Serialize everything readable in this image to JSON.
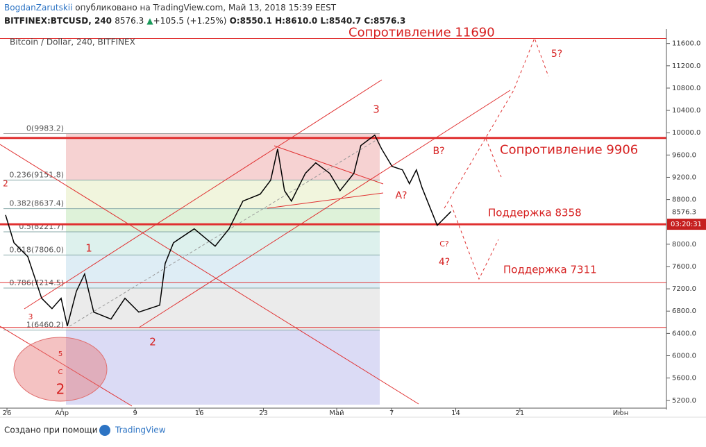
{
  "chart_data": {
    "type": "line",
    "header": {
      "author": "BogdanZarutskii",
      "published": "опубликовано на TradingView.com, Май 13, 2018 15:39 EEST"
    },
    "quote": {
      "symbol": "BITFINEX:BTCUSD, 240",
      "last": "8576.3",
      "change": "+105.5 (+1.25%)",
      "open": "O:8550.1",
      "high": "H:8610.0",
      "low": "L:8540.7",
      "close": "C:8576.3"
    },
    "title": "Bitcoin / Dollar, 240, BITFINEX",
    "footer": {
      "made_with": "Создано при помощи",
      "brand": "TradingView"
    },
    "xlim": [
      -0.76,
      72
    ],
    "ylim": [
      5060,
      11820
    ],
    "xticks": [
      {
        "value": 0,
        "label": "26"
      },
      {
        "value": 6,
        "label": "Апр"
      },
      {
        "value": 14,
        "label": "9"
      },
      {
        "value": 21,
        "label": "16"
      },
      {
        "value": 28,
        "label": "23"
      },
      {
        "value": 36,
        "label": "Май"
      },
      {
        "value": 42,
        "label": "7"
      },
      {
        "value": 49,
        "label": "14"
      },
      {
        "value": 56,
        "label": "21"
      },
      {
        "value": 67,
        "label": "Июн"
      }
    ],
    "yticks": [
      {
        "value": 11600,
        "label": "11600.0"
      },
      {
        "value": 11200,
        "label": "11200.0"
      },
      {
        "value": 10800,
        "label": "10800.0"
      },
      {
        "value": 10400,
        "label": "10400.0"
      },
      {
        "value": 10000,
        "label": "10000.0"
      },
      {
        "value": 9600,
        "label": "9600.0"
      },
      {
        "value": 9200,
        "label": "9200.0"
      },
      {
        "value": 8800,
        "label": "8800.0"
      },
      {
        "value": 8000,
        "label": "8000.0"
      },
      {
        "value": 7600,
        "label": "7600.0"
      },
      {
        "value": 7200,
        "label": "7200.0"
      },
      {
        "value": 6800,
        "label": "6800.0"
      },
      {
        "value": 6400,
        "label": "6400.0"
      },
      {
        "value": 6000,
        "label": "6000.0"
      },
      {
        "value": 5600,
        "label": "5600.0"
      },
      {
        "value": 5200,
        "label": "5200.0"
      }
    ],
    "price_marker": {
      "value": 8576.3,
      "label": "8576.3"
    },
    "countdown": {
      "value": 8358,
      "label": "03:20:31"
    },
    "series": [
      {
        "name": "BTCUSD",
        "color": "#000000",
        "x": [
          -0.15,
          0.76,
          2.27,
          3.79,
          4.92,
          5.91,
          6.59,
          7.58,
          8.48,
          9.47,
          11.36,
          12.88,
          14.39,
          16.67,
          17.27,
          18.18,
          20.45,
          22.73,
          24.24,
          25.76,
          27.65,
          28.79,
          29.55,
          30.3,
          31.06,
          32.58,
          33.71,
          35.23,
          36.36,
          37.88,
          38.64,
          40.15,
          40.91,
          42.05,
          43.18,
          43.94,
          44.7,
          45.3,
          46.21,
          46.97,
          47.73,
          48.48
        ],
        "values": [
          8525,
          8027,
          7778,
          7031,
          6844,
          7031,
          6533,
          7155,
          7467,
          6782,
          6657,
          7031,
          6782,
          6906,
          7653,
          8027,
          8276,
          7964,
          8276,
          8774,
          8898,
          9147,
          9707,
          8960,
          8774,
          9272,
          9459,
          9272,
          8960,
          9272,
          9770,
          9957,
          9707,
          9396,
          9334,
          9085,
          9334,
          9023,
          8649,
          8338,
          8462,
          8587
        ]
      }
    ],
    "levels": [
      {
        "value": 11690,
        "label": "Сопротивление 11690"
      },
      {
        "value": 9906,
        "label": "Сопротивление 9906"
      },
      {
        "value": 8358,
        "label": "Поддержка 8358"
      },
      {
        "value": 7311,
        "label": "Поддержка 7311"
      },
      {
        "value": 6508
      }
    ],
    "fib": [
      {
        "value": 9983.2,
        "label": "0(9983.2)",
        "color": "#f4c7c7"
      },
      {
        "value": 9151.8,
        "label": "0.236(9151.8)",
        "color": "#eef3d4"
      },
      {
        "value": 8637.4,
        "label": "0.382(8637.4)",
        "color": "#d6efcf"
      },
      {
        "value": 8221.7,
        "label": "0.5(8221.7)",
        "color": "#d4ede8"
      },
      {
        "value": 7806.0,
        "label": "0.618(7806.0)",
        "color": "#d6e9f3"
      },
      {
        "value": 7214.5,
        "label": "0.786(7214.5)",
        "color": "#e6e6e6"
      },
      {
        "value": 6460.2,
        "label": "1(6460.2)",
        "color": "#d2d2f2"
      }
    ],
    "waves": [
      "1",
      "2",
      "3",
      "A?",
      "B?",
      "C?",
      "4?",
      "5?",
      "2",
      "3",
      "5",
      "C",
      "2"
    ]
  }
}
